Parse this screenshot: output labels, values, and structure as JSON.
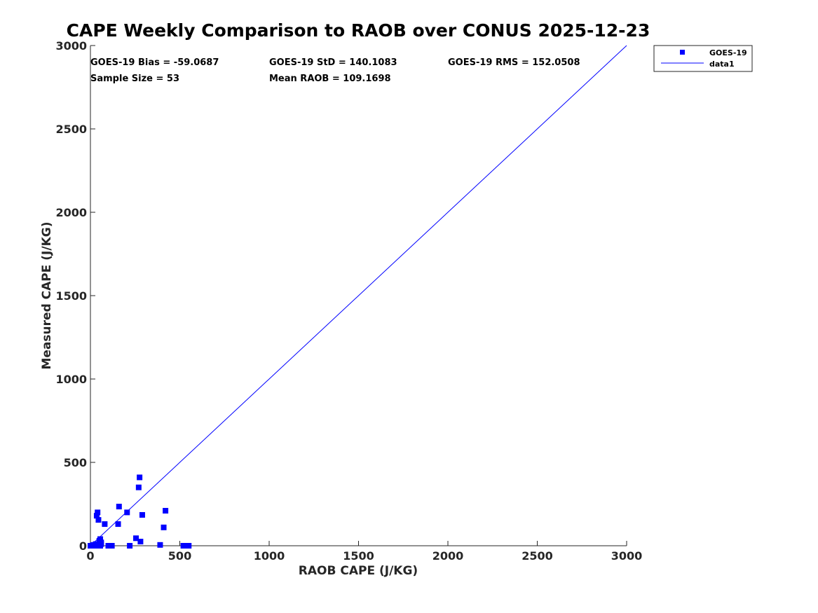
{
  "chart_data": {
    "type": "scatter",
    "title": "CAPE Weekly Comparison to RAOB over CONUS 2025-12-23",
    "xlabel": "RAOB CAPE (J/KG)",
    "ylabel": "Measured CAPE (J/KG)",
    "xlim": [
      0,
      3000
    ],
    "ylim": [
      0,
      3000
    ],
    "xticks": [
      "0",
      "500",
      "1000",
      "1500",
      "2000",
      "2500",
      "3000"
    ],
    "yticks": [
      "0",
      "500",
      "1000",
      "1500",
      "2000",
      "2500",
      "3000"
    ],
    "grid": false,
    "legend_position": "top-right-outside",
    "stats": {
      "bias": "GOES-19 Bias = -59.0687",
      "std": "GOES-19 StD = 140.1083",
      "rms": "GOES-19 RMS = 152.0508",
      "sample": "Sample Size = 53",
      "mean": "Mean RAOB = 109.1698"
    },
    "series": [
      {
        "name": "GOES-19",
        "kind": "scatter",
        "marker": "square",
        "color": "#0000ff",
        "x": [
          0,
          5,
          10,
          15,
          20,
          25,
          30,
          40,
          45,
          50,
          55,
          60,
          35,
          40,
          45,
          55,
          60,
          50,
          80,
          100,
          120,
          155,
          160,
          205,
          220,
          255,
          270,
          275,
          280,
          290,
          390,
          410,
          420,
          520,
          530,
          545,
          550
        ],
        "y": [
          0,
          0,
          0,
          5,
          0,
          0,
          10,
          0,
          0,
          5,
          0,
          10,
          180,
          200,
          155,
          40,
          20,
          30,
          130,
          0,
          0,
          130,
          235,
          200,
          0,
          45,
          350,
          410,
          25,
          185,
          5,
          110,
          210,
          0,
          0,
          0,
          0
        ]
      },
      {
        "name": "data1",
        "kind": "line",
        "color": "#0000ff",
        "x": [
          0,
          3000
        ],
        "y": [
          0,
          3000
        ]
      }
    ]
  }
}
